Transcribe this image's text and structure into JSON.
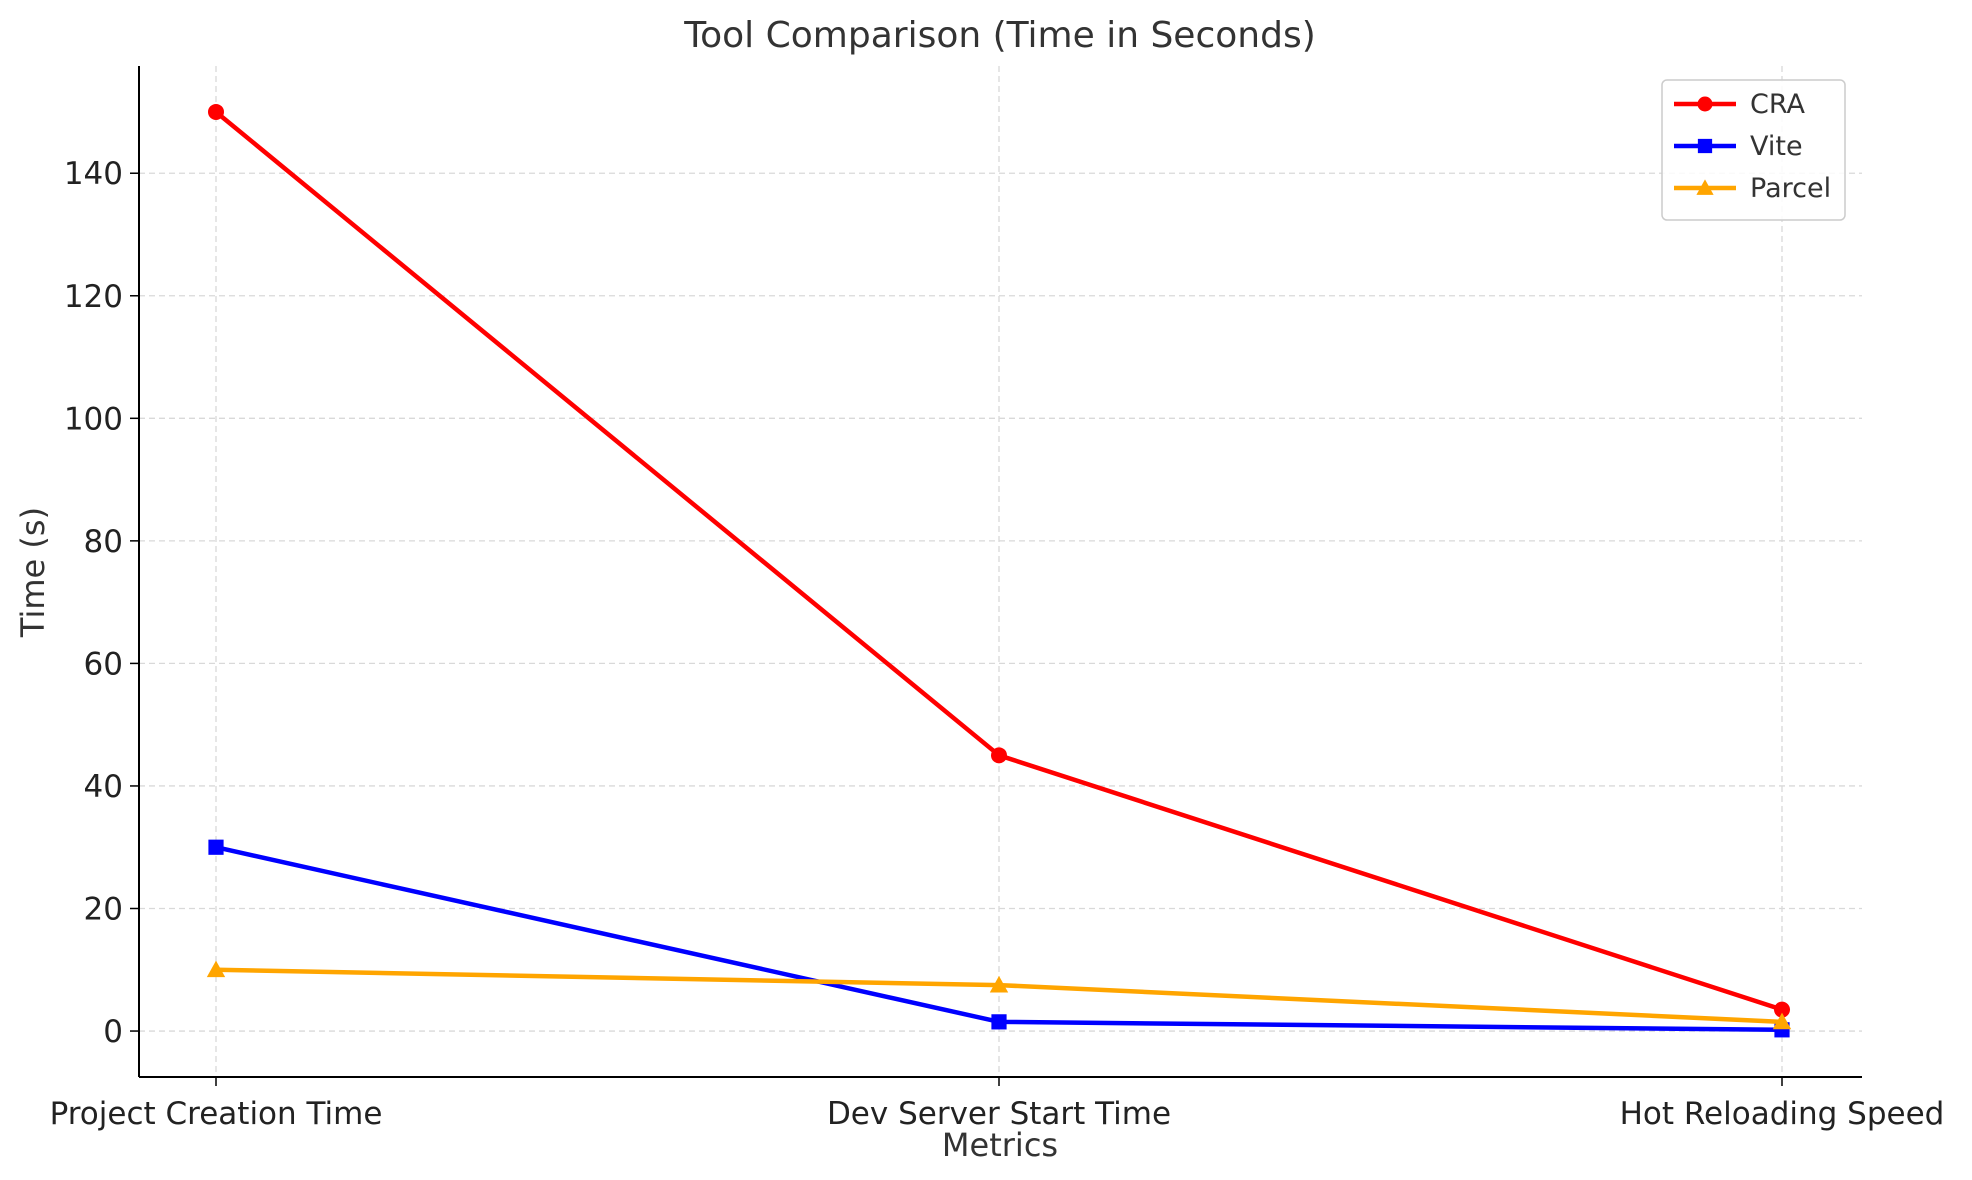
{
  "chart_data": {
    "type": "line",
    "title": "Tool Comparison (Time in Seconds)",
    "xlabel": "Metrics",
    "ylabel": "Time (s)",
    "categories": [
      "Project Creation Time",
      "Dev Server Start Time",
      "Hot Reloading Speed"
    ],
    "ylim": [
      -7.5,
      157.5
    ],
    "yticks": [
      0,
      20,
      40,
      60,
      80,
      100,
      120,
      140
    ],
    "grid": true,
    "legend_position": "top-right",
    "series": [
      {
        "name": "CRA",
        "values": [
          150,
          45,
          3.5
        ],
        "color": "#ff0000",
        "marker": "circle"
      },
      {
        "name": "Vite",
        "values": [
          30,
          1.5,
          0.2
        ],
        "color": "#0000ff",
        "marker": "square"
      },
      {
        "name": "Parcel",
        "values": [
          10,
          7.5,
          1.5
        ],
        "color": "#ffa500",
        "marker": "triangle"
      }
    ]
  }
}
